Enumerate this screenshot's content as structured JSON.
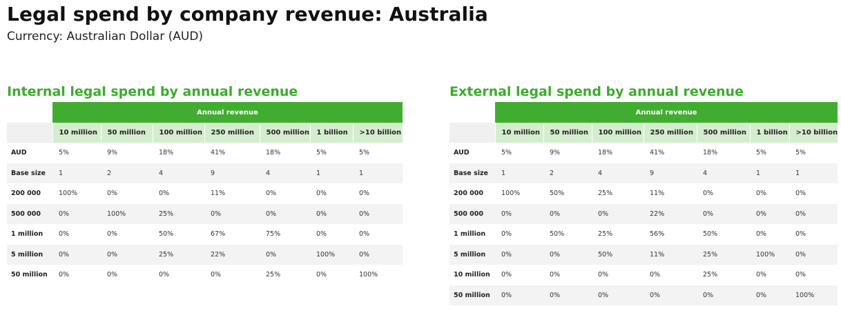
{
  "title": "Legal spend by company revenue: Australia",
  "subtitle": "Currency: Australian Dollar (AUD)",
  "colors": {
    "brand_green": "#41ad30",
    "title_green": "#3dab2e",
    "subheader_green": "#d5edcf",
    "row_shade": "#f3f3f3"
  },
  "internal": {
    "title": "Internal legal spend by annual revenue",
    "header": "Annual revenue",
    "columns": [
      "10 million",
      "50 million",
      "100 million",
      "250 million",
      "500 million",
      "1 billion",
      ">10 billion"
    ],
    "rows": [
      {
        "label": "AUD",
        "cells": [
          "5%",
          "9%",
          "18%",
          "41%",
          "18%",
          "5%",
          "5%"
        ]
      },
      {
        "label": "Base size",
        "cells": [
          "1",
          "2",
          "4",
          "9",
          "4",
          "1",
          "1"
        ]
      },
      {
        "label": "200 000",
        "cells": [
          "100%",
          "0%",
          "0%",
          "11%",
          "0%",
          "0%",
          "0%"
        ]
      },
      {
        "label": "500 000",
        "cells": [
          "0%",
          "100%",
          "25%",
          "0%",
          "0%",
          "0%",
          "0%"
        ]
      },
      {
        "label": "1 million",
        "cells": [
          "0%",
          "0%",
          "50%",
          "67%",
          "75%",
          "0%",
          "0%"
        ]
      },
      {
        "label": "5 million",
        "cells": [
          "0%",
          "0%",
          "25%",
          "22%",
          "0%",
          "100%",
          "0%"
        ]
      },
      {
        "label": "50 million",
        "cells": [
          "0%",
          "0%",
          "0%",
          "0%",
          "25%",
          "0%",
          "100%"
        ]
      }
    ]
  },
  "external": {
    "title": "External legal spend by annual revenue",
    "header": "Annual revenue",
    "columns": [
      "10 million",
      "50 million",
      "100 million",
      "250 million",
      "500 million",
      "1 billion",
      ">10 billion"
    ],
    "rows": [
      {
        "label": "AUD",
        "cells": [
          "5%",
          "9%",
          "18%",
          "41%",
          "18%",
          "5%",
          "5%"
        ]
      },
      {
        "label": "Base size",
        "cells": [
          "1",
          "2",
          "4",
          "9",
          "4",
          "1",
          "1"
        ]
      },
      {
        "label": "200 000",
        "cells": [
          "100%",
          "50%",
          "25%",
          "11%",
          "0%",
          "0%",
          "0%"
        ]
      },
      {
        "label": "500 000",
        "cells": [
          "0%",
          "0%",
          "0%",
          "22%",
          "0%",
          "0%",
          "0%"
        ]
      },
      {
        "label": "1 million",
        "cells": [
          "0%",
          "50%",
          "25%",
          "56%",
          "50%",
          "0%",
          "0%"
        ]
      },
      {
        "label": "5 million",
        "cells": [
          "0%",
          "0%",
          "50%",
          "11%",
          "25%",
          "100%",
          "0%"
        ]
      },
      {
        "label": "10 million",
        "cells": [
          "0%",
          "0%",
          "0%",
          "0%",
          "25%",
          "0%",
          "0%"
        ]
      },
      {
        "label": "50 million",
        "cells": [
          "0%",
          "0%",
          "0%",
          "0%",
          "0%",
          "0%",
          "100%"
        ]
      }
    ]
  }
}
